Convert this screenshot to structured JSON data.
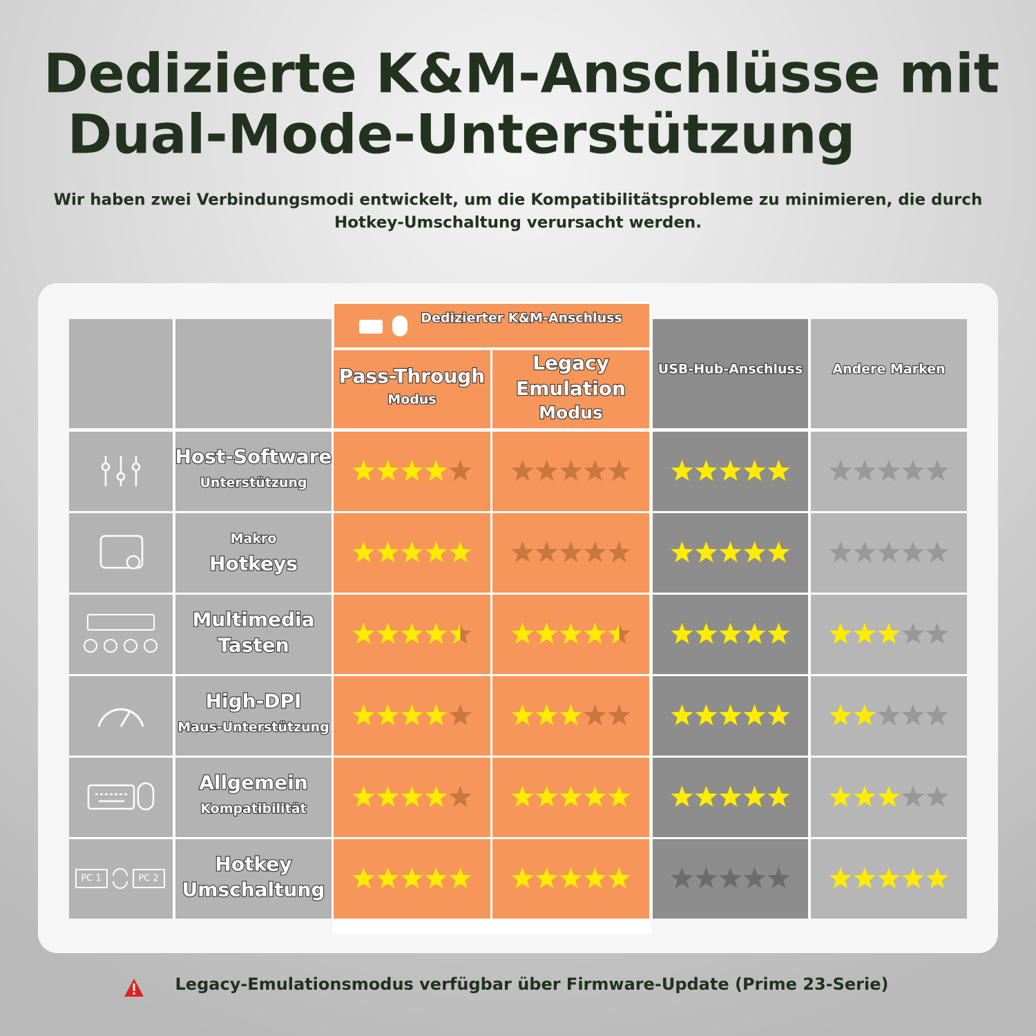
{
  "title": {
    "lines": [
      "Dedizierte K&M-Anschlüsse mit",
      "Dual-Mode-Unterstützung"
    ]
  },
  "subtitle": {
    "lines": [
      "Wir haben zwei Verbindungsmodi entwickelt, um die Kompatibilitätsprobleme zu minimieren, die durch",
      "Hotkey-Umschaltung verursacht werden."
    ]
  },
  "table": {
    "group_header": "Dedizierter K&M-Anschluss",
    "columns": [
      {
        "lines": [
          "Pass-Through",
          "Modus"
        ]
      },
      {
        "lines": [
          "Legacy",
          "Emulation",
          "Modus"
        ]
      },
      {
        "lines": [
          "USB-Hub-Anschluss"
        ]
      },
      {
        "lines": [
          "Andere Marken"
        ]
      }
    ],
    "rows": [
      {
        "label": [
          "Host-Software",
          "Unterstützung"
        ],
        "ratings": [
          4,
          0,
          5,
          0
        ]
      },
      {
        "label": [
          "Makro",
          "Hotkeys"
        ],
        "ratings": [
          5,
          0,
          5,
          0
        ]
      },
      {
        "label": [
          "Multimedia",
          "Tasten"
        ],
        "ratings": [
          4.5,
          4.5,
          5,
          3
        ]
      },
      {
        "label": [
          "High-DPI",
          "Maus-Unterstützung"
        ],
        "ratings": [
          4,
          3,
          5,
          2
        ]
      },
      {
        "label": [
          "Allgemein",
          "Kompatibilität"
        ],
        "ratings": [
          4,
          5,
          5,
          3
        ]
      },
      {
        "label": [
          "Hotkey",
          "Umschaltung"
        ],
        "ratings": [
          5,
          5,
          0,
          5
        ],
        "icon_labels": [
          "PC 1",
          "PC 2"
        ]
      }
    ]
  },
  "footnote": "Legacy-Emulationsmodus verfügbar über Firmware-Update (Prime 23-Serie)"
}
